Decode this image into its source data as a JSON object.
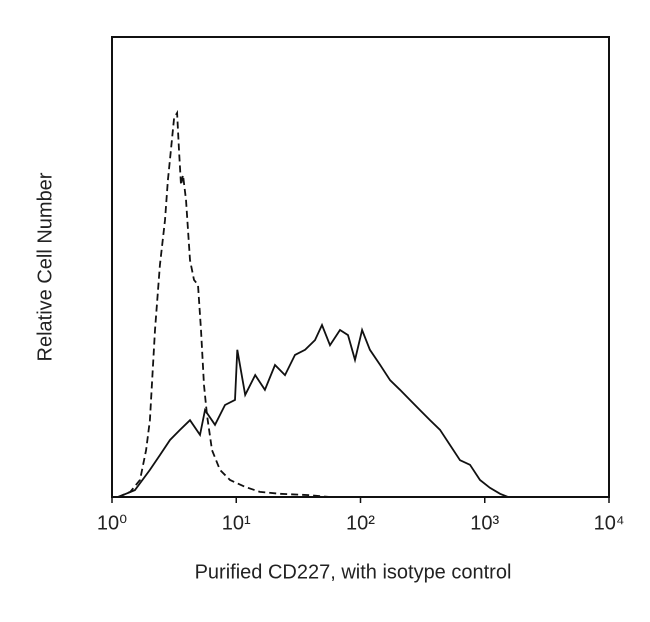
{
  "chart_data": {
    "type": "line",
    "xlabel": "Purified CD227, with isotype control",
    "ylabel": "Relative Cell Number",
    "xscale": "log",
    "xlim": [
      1,
      10000
    ],
    "xticks": [
      {
        "value": 1,
        "label": "10⁰"
      },
      {
        "value": 10,
        "label": "10¹"
      },
      {
        "value": 100,
        "label": "10²"
      },
      {
        "value": 1000,
        "label": "10³"
      },
      {
        "value": 10000,
        "label": "10⁴"
      }
    ],
    "ylim": [
      0,
      100
    ],
    "series": [
      {
        "color": "#111111",
        "dashed": true,
        "x": [
          1.12,
          1.4,
          1.68,
          1.88,
          2.02,
          2.22,
          2.43,
          2.67,
          2.82,
          2.98,
          3.16,
          3.34,
          3.46,
          3.59,
          3.73,
          3.94,
          4.24,
          4.57,
          4.92,
          5.2,
          5.5,
          5.82,
          6.38,
          7.4,
          8.91,
          11.8,
          15.5,
          22.5,
          39.2,
          56.8
        ],
        "values": [
          0,
          1.1,
          3.7,
          10.2,
          16.7,
          36.3,
          50.4,
          60.2,
          68.9,
          75.4,
          82.4,
          83.5,
          75.4,
          67.8,
          70.0,
          64.6,
          51.5,
          47.2,
          46.1,
          36.3,
          24.3,
          17.8,
          10.2,
          5.9,
          3.7,
          2.2,
          1.1,
          0.7,
          0.4,
          0
        ]
      },
      {
        "color": "#111111",
        "dashed": false,
        "x": [
          1.12,
          1.53,
          2.02,
          2.43,
          2.93,
          3.53,
          4.24,
          5.11,
          5.6,
          6.75,
          8.12,
          9.77,
          10.2,
          11.8,
          14.2,
          17.0,
          20.5,
          24.7,
          29.7,
          35.8,
          43.0,
          49.0,
          56.8,
          68.4,
          79.3,
          90.3,
          103,
          119,
          144,
          173,
          208,
          250,
          301,
          363,
          436,
          525,
          632,
          761,
          916,
          1100,
          1330,
          1540
        ],
        "values": [
          0,
          1.5,
          5.9,
          9.1,
          12.4,
          14.6,
          16.7,
          13.5,
          18.9,
          15.7,
          20.0,
          21.1,
          32.0,
          22.2,
          26.5,
          23.3,
          28.7,
          26.5,
          30.9,
          32.0,
          34.1,
          37.4,
          33.0,
          36.3,
          35.2,
          29.8,
          36.3,
          32.0,
          28.7,
          25.4,
          23.3,
          21.1,
          18.9,
          16.7,
          14.6,
          11.3,
          8.0,
          7.0,
          3.7,
          2.0,
          0.7,
          0
        ]
      }
    ]
  }
}
